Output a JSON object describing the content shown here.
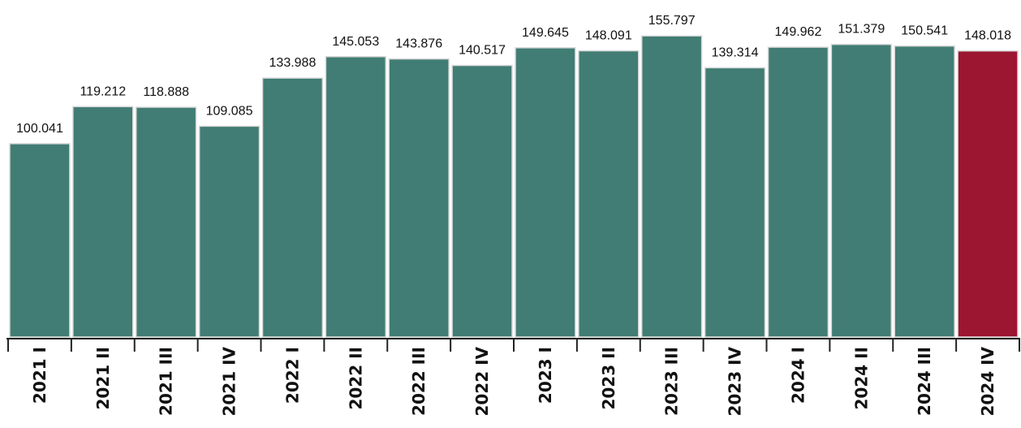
{
  "chart_data": {
    "type": "bar",
    "categories": [
      "2021 I",
      "2021 II",
      "2021 III",
      "2021 IV",
      "2022 I",
      "2022 II",
      "2022 III",
      "2022 IV",
      "2023 I",
      "2023 II",
      "2023 III",
      "2023 IV",
      "2024 I",
      "2024 II",
      "2024 III",
      "2024 IV"
    ],
    "values": [
      100.041,
      119.212,
      118.888,
      109.085,
      133.988,
      145.053,
      143.876,
      140.517,
      149.645,
      148.091,
      155.797,
      139.314,
      149.962,
      151.379,
      150.541,
      148.018
    ],
    "value_labels": [
      "100.041",
      "119.212",
      "118.888",
      "109.085",
      "133.988",
      "145.053",
      "143.876",
      "140.517",
      "149.645",
      "148.091",
      "155.797",
      "139.314",
      "149.962",
      "151.379",
      "150.541",
      "148.018"
    ],
    "title": "",
    "xlabel": "",
    "ylabel": "",
    "ylim": [
      0,
      160
    ],
    "grid": false,
    "legend": "none",
    "colors": {
      "default_bar": "#417d74",
      "highlight_bar": "#9c1531",
      "bar_outline": "#d9d9d9",
      "axis": "#222222",
      "text": "#111111"
    },
    "highlight_index": 15
  }
}
